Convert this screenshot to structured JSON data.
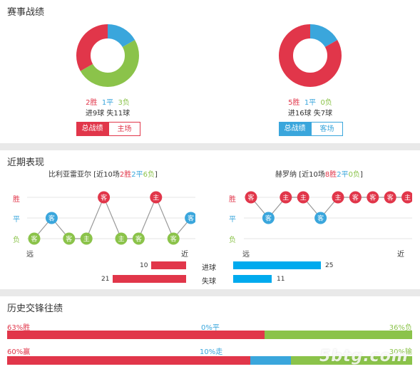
{
  "colors": {
    "win": "#e1364a",
    "draw": "#3aa6dc",
    "loss": "#8bc34a",
    "bar_red": "#e1364a",
    "bar_blue": "#00aaee"
  },
  "section1": {
    "title": "赛事战绩",
    "left": {
      "win": "2胜",
      "draw": "1平",
      "loss": "3负",
      "goals": "进9球  失11球",
      "btn_active": "总战绩",
      "btn_other": "主场",
      "donut": {
        "win": 2,
        "draw": 1,
        "loss": 3
      }
    },
    "right": {
      "win": "5胜",
      "draw": "1平",
      "loss": "0负",
      "goals": "进16球  失7球",
      "btn_active": "总战绩",
      "btn_other": "客场",
      "donut": {
        "win": 5,
        "draw": 1,
        "loss": 0
      }
    }
  },
  "section2": {
    "title": "近期表现",
    "left_team": {
      "name": "比利亚雷亚尔",
      "record_prefix": "[近10场",
      "w": "2胜",
      "d": "2平",
      "l": "6负",
      "record_suffix": "]",
      "results": [
        [
          "loss",
          "客"
        ],
        [
          "draw",
          "客"
        ],
        [
          "loss",
          "客"
        ],
        [
          "loss",
          "主"
        ],
        [
          "win",
          "客"
        ],
        [
          "loss",
          "主"
        ],
        [
          "loss",
          "客"
        ],
        [
          "win",
          "主"
        ],
        [
          "loss",
          "客"
        ],
        [
          "draw",
          "客"
        ]
      ]
    },
    "right_team": {
      "name": "赫罗纳",
      "record_prefix": "[近10场",
      "w": "8胜",
      "d": "2平",
      "l": "0负",
      "record_suffix": "]",
      "results": [
        [
          "win",
          "客"
        ],
        [
          "draw",
          "客"
        ],
        [
          "win",
          "主"
        ],
        [
          "win",
          "主"
        ],
        [
          "draw",
          "客"
        ],
        [
          "win",
          "主"
        ],
        [
          "win",
          "客"
        ],
        [
          "win",
          "客"
        ],
        [
          "win",
          "客"
        ],
        [
          "win",
          "主"
        ]
      ]
    },
    "y_labels": {
      "win": "胜",
      "draw": "平",
      "loss": "负"
    },
    "x_far": "远",
    "x_near": "近",
    "goals": {
      "scored_label": "进球",
      "conceded_label": "失球",
      "left_scored": 10,
      "left_conceded": 21,
      "right_scored": 25,
      "right_conceded": 11
    }
  },
  "section3": {
    "title": "历史交锋往绩",
    "row1": {
      "win_label": "63%胜",
      "draw_label": "0%平",
      "loss_label": "36%负",
      "win": 63,
      "draw": 0,
      "loss": 36
    },
    "row2": {
      "win_label": "60%赢",
      "draw_label": "10%走",
      "loss_label": "30%输",
      "win": 60,
      "draw": 10,
      "loss": 30
    },
    "watermark": "5btg.com"
  }
}
